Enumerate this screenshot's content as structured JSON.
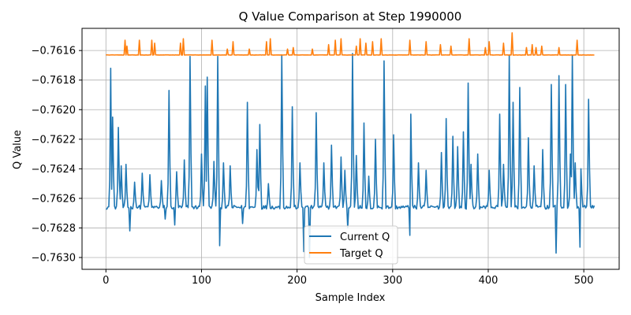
{
  "chart_data": {
    "type": "line",
    "title": "Q Value Comparison at Step 1990000",
    "xlabel": "Sample Index",
    "ylabel": "Q Value",
    "xlim": [
      -25,
      537
    ],
    "ylim": [
      -0.76308,
      -0.76145
    ],
    "xticks": [
      0,
      100,
      200,
      300,
      400,
      500
    ],
    "xtick_labels": [
      "0",
      "100",
      "200",
      "300",
      "400",
      "500"
    ],
    "yticks": [
      -0.763,
      -0.7628,
      -0.7626,
      -0.7624,
      -0.7622,
      -0.762,
      -0.7618,
      -0.7616
    ],
    "ytick_labels": [
      "−0.7630",
      "−0.7628",
      "−0.7626",
      "−0.7624",
      "−0.7622",
      "−0.7620",
      "−0.7618",
      "−0.7616"
    ],
    "grid": true,
    "legend_position": "bottom-center",
    "n_points": 512,
    "series": [
      {
        "name": "Current Q",
        "color": "#1f77b4",
        "baseline": -0.76266,
        "spikes": [
          [
            5,
            -0.76172
          ],
          [
            7,
            -0.76205
          ],
          [
            13,
            -0.76212
          ],
          [
            16,
            -0.76238
          ],
          [
            21,
            -0.76237
          ],
          [
            30,
            -0.76249
          ],
          [
            38,
            -0.76243
          ],
          [
            46,
            -0.76244
          ],
          [
            58,
            -0.76248
          ],
          [
            66,
            -0.76187
          ],
          [
            74,
            -0.76242
          ],
          [
            82,
            -0.76234
          ],
          [
            88,
            -0.76164
          ],
          [
            100,
            -0.7623
          ],
          [
            104,
            -0.76184
          ],
          [
            106,
            -0.76178
          ],
          [
            113,
            -0.76235
          ],
          [
            117,
            -0.76164
          ],
          [
            123,
            -0.76236
          ],
          [
            130,
            -0.76238
          ],
          [
            148,
            -0.76195
          ],
          [
            158,
            -0.76227
          ],
          [
            161,
            -0.7621
          ],
          [
            170,
            -0.7625
          ],
          [
            184,
            -0.76163
          ],
          [
            195,
            -0.76198
          ],
          [
            203,
            -0.76236
          ],
          [
            220,
            -0.76202
          ],
          [
            228,
            -0.76236
          ],
          [
            236,
            -0.76224
          ],
          [
            246,
            -0.76232
          ],
          [
            250,
            -0.76241
          ],
          [
            258,
            -0.76162
          ],
          [
            262,
            -0.76231
          ],
          [
            270,
            -0.76209
          ],
          [
            275,
            -0.76245
          ],
          [
            282,
            -0.7622
          ],
          [
            291,
            -0.76167
          ],
          [
            301,
            -0.76217
          ],
          [
            319,
            -0.76203
          ],
          [
            327,
            -0.76236
          ],
          [
            335,
            -0.76241
          ],
          [
            351,
            -0.76229
          ],
          [
            356,
            -0.76206
          ],
          [
            363,
            -0.76218
          ],
          [
            368,
            -0.76225
          ],
          [
            374,
            -0.76215
          ],
          [
            379,
            -0.76182
          ],
          [
            382,
            -0.76237
          ],
          [
            389,
            -0.7623
          ],
          [
            401,
            -0.76241
          ],
          [
            412,
            -0.76203
          ],
          [
            416,
            -0.76237
          ],
          [
            422,
            -0.76163
          ],
          [
            426,
            -0.76195
          ],
          [
            433,
            -0.76185
          ],
          [
            442,
            -0.76219
          ],
          [
            448,
            -0.76238
          ],
          [
            457,
            -0.76227
          ],
          [
            466,
            -0.76183
          ],
          [
            474,
            -0.76177
          ],
          [
            481,
            -0.76183
          ],
          [
            486,
            -0.7623
          ],
          [
            488,
            -0.76163
          ],
          [
            491,
            -0.76236
          ],
          [
            497,
            -0.7624
          ],
          [
            505,
            -0.76193
          ]
        ],
        "dips": [
          [
            6,
            -0.76284
          ],
          [
            25,
            -0.76282
          ],
          [
            62,
            -0.76274
          ],
          [
            72,
            -0.76278
          ],
          [
            119,
            -0.76292
          ],
          [
            143,
            -0.76277
          ],
          [
            207,
            -0.76296
          ],
          [
            213,
            -0.763
          ],
          [
            236,
            -0.76275
          ],
          [
            253,
            -0.7628
          ],
          [
            282,
            -0.76277
          ],
          [
            318,
            -0.76285
          ],
          [
            352,
            -0.76286
          ],
          [
            379,
            -0.76281
          ],
          [
            416,
            -0.76283
          ],
          [
            434,
            -0.76301
          ],
          [
            471,
            -0.76297
          ],
          [
            496,
            -0.76293
          ]
        ]
      },
      {
        "name": "Target Q",
        "color": "#ff7f0e",
        "baseline": -0.76163,
        "spikes": [
          [
            20,
            -0.76153
          ],
          [
            22,
            -0.76157
          ],
          [
            35,
            -0.76153
          ],
          [
            48,
            -0.76153
          ],
          [
            51,
            -0.76155
          ],
          [
            78,
            -0.76155
          ],
          [
            81,
            -0.76152
          ],
          [
            111,
            -0.76153
          ],
          [
            127,
            -0.76159
          ],
          [
            133,
            -0.76154
          ],
          [
            150,
            -0.76159
          ],
          [
            168,
            -0.76154
          ],
          [
            172,
            -0.76152
          ],
          [
            190,
            -0.76159
          ],
          [
            196,
            -0.76158
          ],
          [
            216,
            -0.76159
          ],
          [
            233,
            -0.76156
          ],
          [
            240,
            -0.76153
          ],
          [
            246,
            -0.76152
          ],
          [
            262,
            -0.76157
          ],
          [
            266,
            -0.76152
          ],
          [
            272,
            -0.76155
          ],
          [
            279,
            -0.76154
          ],
          [
            288,
            -0.76152
          ],
          [
            318,
            -0.76153
          ],
          [
            335,
            -0.76154
          ],
          [
            350,
            -0.76156
          ],
          [
            361,
            -0.76157
          ],
          [
            380,
            -0.76152
          ],
          [
            397,
            -0.76158
          ],
          [
            401,
            -0.76154
          ],
          [
            416,
            -0.76155
          ],
          [
            425,
            -0.76148
          ],
          [
            440,
            -0.76158
          ],
          [
            446,
            -0.76156
          ],
          [
            450,
            -0.76158
          ],
          [
            456,
            -0.76157
          ],
          [
            474,
            -0.76158
          ],
          [
            493,
            -0.76153
          ]
        ]
      }
    ]
  }
}
